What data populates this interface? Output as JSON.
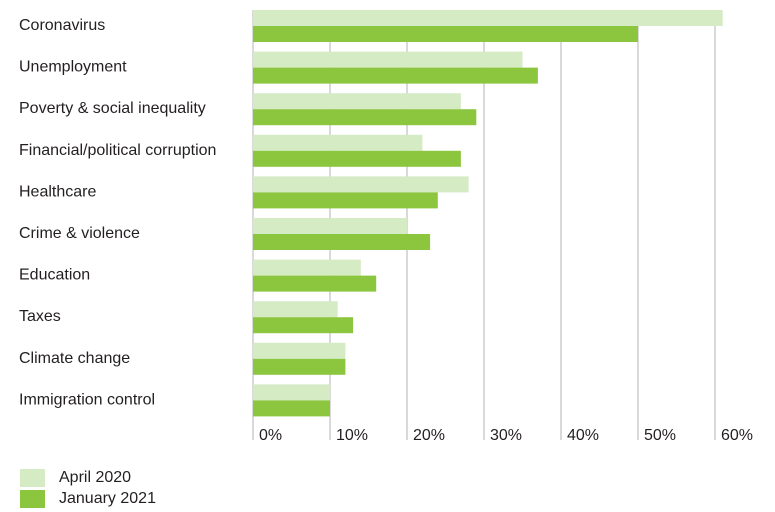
{
  "chart_data": {
    "type": "bar",
    "orientation": "horizontal",
    "categories": [
      "Coronavirus",
      "Unemployment",
      "Poverty & social inequality",
      "Financial/political corruption",
      "Healthcare",
      "Crime & violence",
      "Education",
      "Taxes",
      "Climate change",
      "Immigration control"
    ],
    "series": [
      {
        "name": "April 2020",
        "color": "#d5ebc4",
        "values": [
          61,
          35,
          27,
          22,
          28,
          20,
          14,
          11,
          12,
          10
        ]
      },
      {
        "name": "January 2021",
        "color": "#8cc63f",
        "values": [
          50,
          37,
          29,
          27,
          24,
          23,
          16,
          13,
          12,
          10
        ]
      }
    ],
    "xlim": [
      0,
      60
    ],
    "x_ticks": [
      "0%",
      "10%",
      "20%",
      "30%",
      "40%",
      "50%",
      "60%"
    ],
    "grid": true,
    "legend_position": "bottom-left"
  }
}
